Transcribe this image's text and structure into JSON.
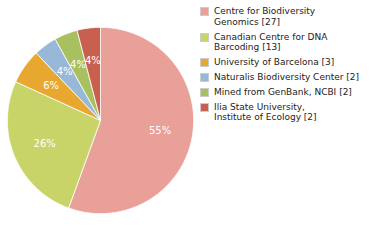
{
  "chart_data": {
    "type": "pie",
    "categories": [
      "Centre for Biodiversity\nGenomics [27]",
      "Canadian Centre for DNA\nBarcoding [13]",
      "University of Barcelona [3]",
      "Naturalis Biodiversity Center [2]",
      "Mined from GenBank, NCBI [2]",
      "Ilia State University,\nInstitute of Ecology [2]"
    ],
    "values": [
      55,
      26,
      6,
      4,
      4,
      4
    ],
    "value_labels": [
      "55%",
      "26%",
      "6%",
      "4%",
      "4%",
      "4%"
    ],
    "colors": [
      "#e8a098",
      "#c8d468",
      "#e8a830",
      "#98b8d8",
      "#a8c060",
      "#c86050"
    ],
    "data_labels": true,
    "legend": "right"
  }
}
